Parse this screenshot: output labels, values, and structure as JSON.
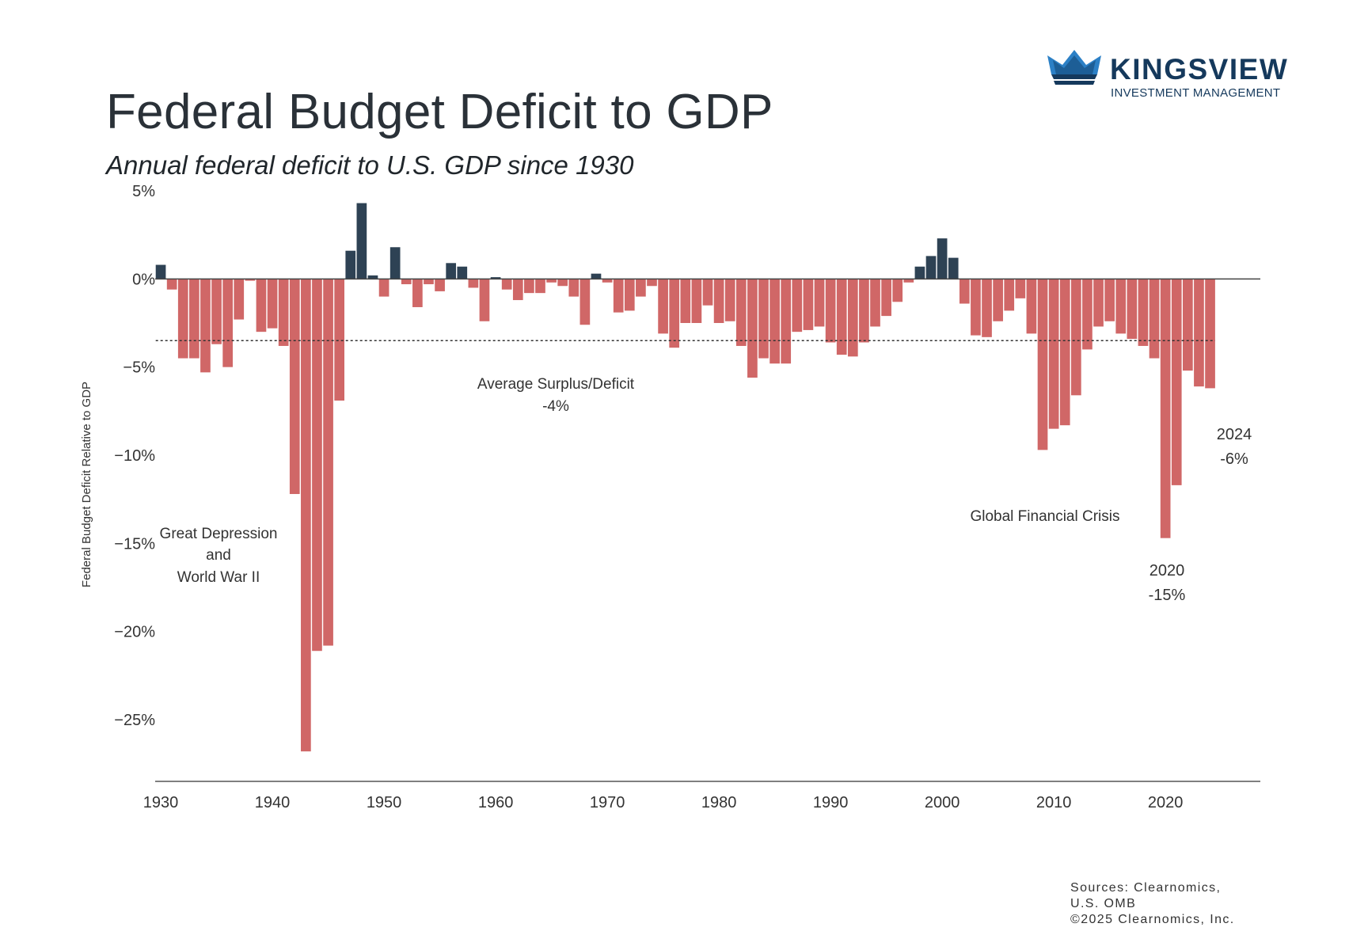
{
  "header": {
    "title": "Federal Budget Deficit to GDP",
    "subtitle": "Annual federal deficit to U.S. GDP since 1930"
  },
  "logo": {
    "name": "KINGSVIEW",
    "tagline": "INVESTMENT MANAGEMENT",
    "icon": "crown-icon",
    "color": "#15395c",
    "accent": "#2c80c6"
  },
  "colors": {
    "deficit": "#d06767",
    "surplus": "#2e4254",
    "axis": "#555555",
    "text": "#2b3238"
  },
  "chart_data": {
    "type": "bar",
    "title": "Federal Budget Deficit to GDP",
    "subtitle": "Annual federal deficit to U.S. GDP since 1930",
    "xlabel": "",
    "ylabel": "Federal Budget Deficit Relative to GDP",
    "ylim": [
      -28.5,
      5
    ],
    "xlim": [
      1929.5,
      2028.5
    ],
    "yticks": [
      5,
      0,
      -5,
      -10,
      -15,
      -20,
      -25
    ],
    "ytick_labels": [
      "5%",
      "0%",
      "−5%",
      "−10%",
      "−15%",
      "−20%",
      "−25%"
    ],
    "xticks": [
      1930,
      1940,
      1950,
      1960,
      1970,
      1980,
      1990,
      2000,
      2010,
      2020
    ],
    "xtick_labels": [
      "1930",
      "1940",
      "1950",
      "1960",
      "1970",
      "1980",
      "1990",
      "2000",
      "2010",
      "2020"
    ],
    "legend": "none",
    "grid": false,
    "x": [
      1930,
      1931,
      1932,
      1933,
      1934,
      1935,
      1936,
      1937,
      1938,
      1939,
      1940,
      1941,
      1942,
      1943,
      1944,
      1945,
      1946,
      1947,
      1948,
      1949,
      1950,
      1951,
      1952,
      1953,
      1954,
      1955,
      1956,
      1957,
      1958,
      1959,
      1960,
      1961,
      1962,
      1963,
      1964,
      1965,
      1966,
      1967,
      1968,
      1969,
      1970,
      1971,
      1972,
      1973,
      1974,
      1975,
      1976,
      1977,
      1978,
      1979,
      1980,
      1981,
      1982,
      1983,
      1984,
      1985,
      1986,
      1987,
      1988,
      1989,
      1990,
      1991,
      1992,
      1993,
      1994,
      1995,
      1996,
      1997,
      1998,
      1999,
      2000,
      2001,
      2002,
      2003,
      2004,
      2005,
      2006,
      2007,
      2008,
      2009,
      2010,
      2011,
      2012,
      2013,
      2014,
      2015,
      2016,
      2017,
      2018,
      2019,
      2020,
      2021,
      2022,
      2023,
      2024
    ],
    "values": [
      0.8,
      -0.6,
      -4.5,
      -4.5,
      -5.3,
      -3.7,
      -5.0,
      -2.3,
      -0.1,
      -3.0,
      -2.8,
      -3.8,
      -12.2,
      -26.8,
      -21.1,
      -20.8,
      -6.9,
      1.6,
      4.3,
      0.2,
      -1.0,
      1.8,
      -0.3,
      -1.6,
      -0.3,
      -0.7,
      0.9,
      0.7,
      -0.5,
      -2.4,
      0.1,
      -0.6,
      -1.2,
      -0.8,
      -0.8,
      -0.2,
      -0.4,
      -1.0,
      -2.6,
      0.3,
      -0.2,
      -1.9,
      -1.8,
      -1.0,
      -0.4,
      -3.1,
      -3.9,
      -2.5,
      -2.5,
      -1.5,
      -2.5,
      -2.4,
      -3.8,
      -5.6,
      -4.5,
      -4.8,
      -4.8,
      -3.0,
      -2.9,
      -2.7,
      -3.6,
      -4.3,
      -4.4,
      -3.6,
      -2.7,
      -2.1,
      -1.3,
      -0.2,
      0.7,
      1.3,
      2.3,
      1.2,
      -1.4,
      -3.2,
      -3.3,
      -2.4,
      -1.8,
      -1.1,
      -3.1,
      -9.7,
      -8.5,
      -8.3,
      -6.6,
      -4.0,
      -2.7,
      -2.4,
      -3.1,
      -3.4,
      -3.8,
      -4.5,
      -14.7,
      -11.7,
      -5.2,
      -6.1,
      -6.2
    ],
    "average": -3.5,
    "average_label": "Average Surplus/Deficit",
    "average_value_label": "-4%",
    "annotations": [
      {
        "id": "depression",
        "lines": [
          "Great Depression",
          "and",
          "World War II"
        ]
      },
      {
        "id": "gfc",
        "lines": [
          "Global Financial Crisis"
        ]
      },
      {
        "id": "y2020",
        "lines": [
          "2020",
          "-15%"
        ]
      },
      {
        "id": "y2024",
        "lines": [
          "2024",
          "-6%"
        ]
      }
    ]
  },
  "footer": {
    "sources_lines": [
      "Sources: Clearnomics,",
      "U.S. OMB",
      "©2025 Clearnomics, Inc."
    ]
  }
}
